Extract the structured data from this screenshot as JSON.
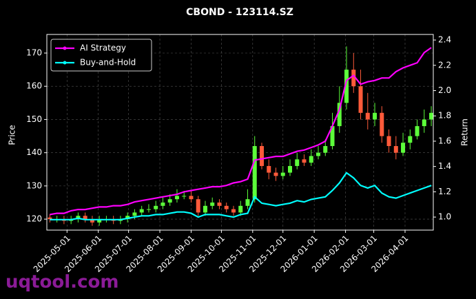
{
  "chart_data": {
    "type": "candlestick",
    "title": "CBOND - 123114.SZ",
    "y_label": "Price",
    "y2_label": "Return",
    "watermark": "uqtool.com",
    "legend": "upper left",
    "grid": true,
    "up_color": "#5cff3a",
    "down_color": "#ff5a3a",
    "x": [
      "2025-04-14",
      "2025-04-21",
      "2025-04-28",
      "2025-05-05",
      "2025-05-12",
      "2025-05-19",
      "2025-05-26",
      "2025-06-02",
      "2025-06-09",
      "2025-06-16",
      "2025-06-23",
      "2025-06-30",
      "2025-07-07",
      "2025-07-14",
      "2025-07-21",
      "2025-07-28",
      "2025-08-04",
      "2025-08-11",
      "2025-08-18",
      "2025-08-25",
      "2025-09-01",
      "2025-09-08",
      "2025-09-15",
      "2025-09-22",
      "2025-09-29",
      "2025-10-06",
      "2025-10-13",
      "2025-10-20",
      "2025-10-27",
      "2025-11-03",
      "2025-11-10",
      "2025-11-17",
      "2025-11-24",
      "2025-12-01",
      "2025-12-08",
      "2025-12-15",
      "2025-12-22",
      "2025-12-29",
      "2026-01-05",
      "2026-01-12",
      "2026-01-19",
      "2026-01-26",
      "2026-02-02",
      "2026-02-09",
      "2026-02-16",
      "2026-02-23",
      "2026-03-02",
      "2026-03-09",
      "2026-03-16",
      "2026-03-23",
      "2026-03-30",
      "2026-04-06",
      "2026-04-13",
      "2026-04-20",
      "2026-04-27"
    ],
    "open": [
      120.5,
      120,
      120,
      119.5,
      120,
      121,
      120,
      119,
      120,
      120,
      119.5,
      120,
      121,
      122,
      123,
      123,
      124,
      125,
      126,
      127,
      127,
      126,
      122,
      124,
      125,
      124,
      123,
      122,
      124,
      126,
      142,
      136,
      134,
      133,
      134,
      136,
      138,
      137,
      139,
      140,
      142,
      148,
      155,
      165,
      160,
      152,
      150,
      152,
      145,
      142,
      140,
      143,
      145,
      148,
      150
    ],
    "high": [
      121.5,
      121,
      121,
      121,
      122,
      122,
      121,
      121,
      121,
      121,
      121,
      122,
      123,
      124,
      124.5,
      125.5,
      126.5,
      127.5,
      129,
      128.5,
      128.5,
      127,
      125.5,
      126.5,
      126,
      125,
      124,
      125.5,
      129,
      145,
      143,
      138,
      135.5,
      136,
      138,
      140,
      139.5,
      141,
      142,
      144,
      152,
      160,
      172,
      170,
      165,
      158,
      155,
      154,
      147,
      145,
      146,
      147,
      150,
      153,
      154
    ],
    "low": [
      119,
      119,
      118.5,
      118.5,
      119,
      119,
      118,
      118,
      119,
      118.5,
      118.5,
      119,
      120,
      121,
      122,
      122,
      123,
      124,
      125,
      126,
      125,
      121,
      121,
      123,
      123,
      122,
      121,
      121,
      123,
      125,
      135,
      132,
      131.5,
      132,
      133,
      135,
      136,
      136,
      138,
      139,
      141,
      146,
      153,
      158,
      150,
      147,
      148,
      143,
      140,
      138,
      139,
      141,
      144,
      146,
      148
    ],
    "close": [
      120,
      120,
      119.5,
      120,
      121,
      120,
      119,
      120,
      120,
      119.5,
      120,
      121,
      122,
      123,
      123,
      124,
      125,
      126,
      127,
      127,
      126,
      122,
      124,
      125,
      124,
      123,
      122,
      124,
      126,
      142,
      136,
      134,
      133,
      134,
      136,
      138,
      137,
      139,
      140,
      142,
      148,
      155,
      165,
      160,
      152,
      150,
      152,
      145,
      142,
      140,
      143,
      145,
      148,
      150,
      152
    ],
    "series": [
      {
        "name": "AI Strategy",
        "color": "#ff00ff",
        "axis": "y2",
        "values": [
          1.02,
          1.03,
          1.03,
          1.05,
          1.06,
          1.06,
          1.07,
          1.08,
          1.08,
          1.09,
          1.09,
          1.1,
          1.12,
          1.13,
          1.14,
          1.15,
          1.16,
          1.17,
          1.18,
          1.2,
          1.21,
          1.22,
          1.23,
          1.24,
          1.24,
          1.25,
          1.27,
          1.28,
          1.3,
          1.45,
          1.46,
          1.47,
          1.48,
          1.48,
          1.5,
          1.52,
          1.53,
          1.55,
          1.57,
          1.6,
          1.72,
          1.85,
          2.08,
          2.12,
          2.05,
          2.07,
          2.08,
          2.1,
          2.1,
          2.15,
          2.18,
          2.2,
          2.22,
          2.3,
          2.34
        ]
      },
      {
        "name": "Buy-and-Hold",
        "color": "#00ffff",
        "axis": "y2",
        "values": [
          0.98,
          0.98,
          0.98,
          0.98,
          0.99,
          0.98,
          0.98,
          0.98,
          0.98,
          0.98,
          0.98,
          0.99,
          1.0,
          1.01,
          1.01,
          1.02,
          1.02,
          1.03,
          1.04,
          1.04,
          1.03,
          1.0,
          1.02,
          1.02,
          1.02,
          1.01,
          1.0,
          1.02,
          1.03,
          1.16,
          1.11,
          1.1,
          1.09,
          1.1,
          1.11,
          1.13,
          1.12,
          1.14,
          1.15,
          1.16,
          1.21,
          1.27,
          1.35,
          1.31,
          1.25,
          1.23,
          1.25,
          1.19,
          1.16,
          1.15,
          1.17,
          1.19,
          1.21,
          1.23,
          1.25
        ]
      }
    ],
    "xlim": [
      "2025-04-11",
      "2026-04-29"
    ],
    "xticks": [
      "2025-05-01",
      "2025-06-01",
      "2025-07-01",
      "2025-08-01",
      "2025-09-01",
      "2025-10-01",
      "2025-11-01",
      "2025-12-01",
      "2026-01-01",
      "2026-02-01",
      "2026-03-01",
      "2026-04-01"
    ],
    "ylim": [
      116.7,
      175.6
    ],
    "yticks": [
      120,
      130,
      140,
      150,
      160,
      170
    ],
    "y2lim": [
      0.897,
      2.444
    ],
    "y2ticks": [
      {
        "value": 1,
        "label": "1.0"
      },
      1.2,
      1.4,
      1.6,
      1.8,
      {
        "value": 2,
        "label": "2.0"
      },
      2.2,
      2.4
    ]
  }
}
